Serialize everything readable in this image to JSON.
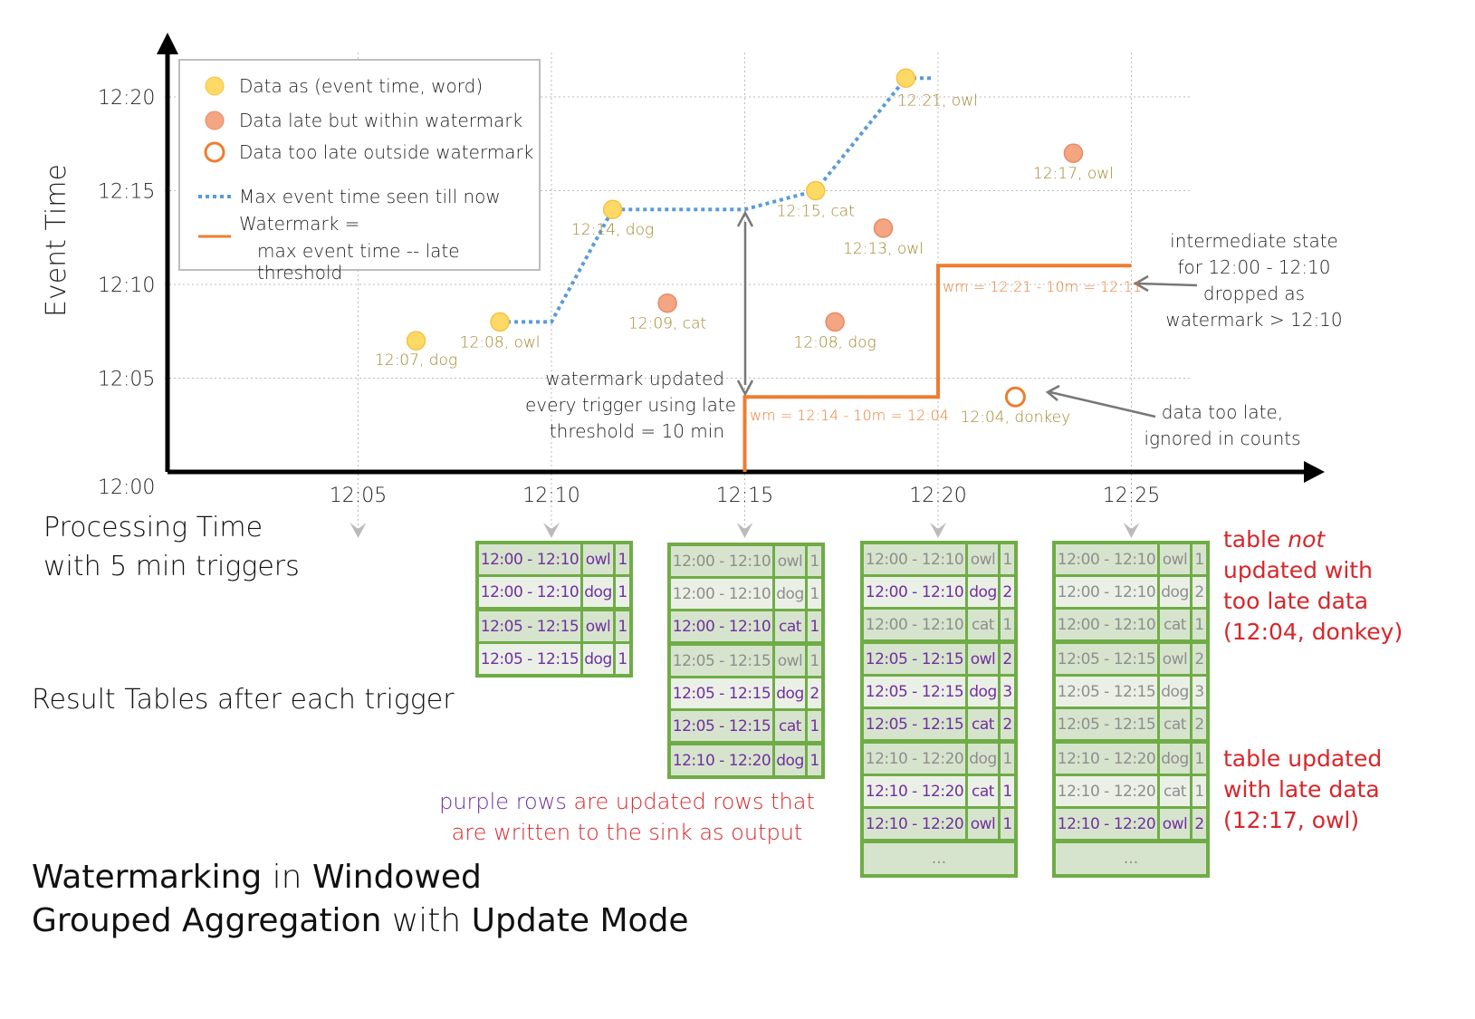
{
  "colors": {
    "table_border": "#6fac46",
    "updated_row_text": "#7030a0",
    "stale_row_text": "#8e8e8e",
    "on_time": "#ffd966",
    "late": "#f4a582",
    "too_late": "#ed7d31",
    "max_event_line": "#5b9bd5",
    "watermark_line": "#ed7d31",
    "annotation_red": "#d7262b",
    "point_label": "#a0862a"
  },
  "chart_data": {
    "type": "scatter",
    "ylabel": "Event Time",
    "xlabel_line1": "Processing Time",
    "xlabel_line2": "with 5 min triggers",
    "x_ticks": [
      "12:05",
      "12:10",
      "12:15",
      "12:20",
      "12:25"
    ],
    "y_ticks": [
      "12:00",
      "12:05",
      "12:10",
      "12:15",
      "12:20"
    ],
    "points": [
      {
        "proc": "12:06:30",
        "event": "12:07",
        "label": "12:07, dog",
        "kind": "on_time"
      },
      {
        "proc": "12:08:40",
        "event": "12:08",
        "label": "12:08, owl",
        "kind": "on_time"
      },
      {
        "proc": "12:11:35",
        "event": "12:14",
        "label": "12:14, dog",
        "kind": "on_time"
      },
      {
        "proc": "12:13:00",
        "event": "12:09",
        "label": "12:09, cat",
        "kind": "late"
      },
      {
        "proc": "12:16:50",
        "event": "12:15",
        "label": "12:15, cat",
        "kind": "on_time"
      },
      {
        "proc": "12:17:20",
        "event": "12:08",
        "label": "12:08, dog",
        "kind": "late"
      },
      {
        "proc": "12:18:35",
        "event": "12:13",
        "label": "12:13, owl",
        "kind": "late"
      },
      {
        "proc": "12:19:10",
        "event": "12:21",
        "label": "12:21, owl",
        "kind": "on_time"
      },
      {
        "proc": "12:22:00",
        "event": "12:04",
        "label": "12:04, donkey",
        "kind": "too_late"
      },
      {
        "proc": "12:23:30",
        "event": "12:17",
        "label": "12:17, owl",
        "kind": "late"
      }
    ],
    "max_event_line": [
      [
        "12:08:40",
        "12:08"
      ],
      [
        "12:10:00",
        "12:08"
      ],
      [
        "12:11:35",
        "12:14"
      ],
      [
        "12:15:00",
        "12:14"
      ],
      [
        "12:16:50",
        "12:15"
      ],
      [
        "12:19:10",
        "12:21"
      ],
      [
        "12:19:50",
        "12:21"
      ]
    ],
    "watermark_line": [
      [
        "12:15:00",
        "12:00"
      ],
      [
        "12:15:00",
        "12:04"
      ],
      [
        "12:20:00",
        "12:04"
      ],
      [
        "12:20:00",
        "12:11"
      ],
      [
        "12:25:00",
        "12:11"
      ]
    ],
    "watermark_labels": [
      "wm = 12:14 - 10m = 12:04",
      "wm = 12:21 - 10m = 12:11"
    ],
    "legend": [
      "Data as (event time, word)",
      "Data late but within watermark",
      "Data too late outside watermark",
      "Max event time seen till now",
      "Watermark =",
      "max event time -- late threshold"
    ],
    "legend_placement": "top-left",
    "grid": true
  },
  "annotations": {
    "wm_updated": [
      "watermark updated",
      "every trigger using late",
      "threshold = 10 min"
    ],
    "intermediate": [
      "intermediate state",
      "for 12:00 - 12:10",
      "dropped as",
      "watermark > 12:10"
    ],
    "too_late": [
      "data too late,",
      "ignored in counts"
    ],
    "result_tables": "Result Tables after each trigger",
    "purple_rows_a": "purple rows",
    "purple_rows_b": " are updated rows that",
    "purple_rows_c": "are written to the sink as output",
    "not_updated": [
      "table ",
      "not",
      "updated with",
      "too late data",
      "(12:04, donkey)"
    ],
    "updated_late": [
      "table updated",
      "with late data",
      "(12:17, owl)"
    ],
    "title": [
      "Watermarking",
      " in ",
      "Windowed",
      "Grouped Aggregation",
      " with ",
      "Update Mode"
    ]
  },
  "tables": [
    {
      "rows": [
        [
          "12:00 - 12:10",
          "owl",
          "1",
          1,
          0
        ],
        [
          "12:00 - 12:10",
          "dog",
          "1",
          1,
          1
        ],
        [
          "12:05 - 12:15",
          "owl",
          "1",
          1,
          0
        ],
        [
          "12:05 - 12:15",
          "dog",
          "1",
          1,
          1
        ]
      ],
      "more": ""
    },
    {
      "rows": [
        [
          "12:00 - 12:10",
          "owl",
          "1",
          0,
          0
        ],
        [
          "12:00 - 12:10",
          "dog",
          "1",
          0,
          1
        ],
        [
          "12:00 - 12:10",
          "cat",
          "1",
          1,
          0
        ],
        [
          "12:05 - 12:15",
          "owl",
          "1",
          0,
          0
        ],
        [
          "12:05 - 12:15",
          "dog",
          "2",
          1,
          1
        ],
        [
          "12:05 - 12:15",
          "cat",
          "1",
          1,
          0
        ],
        [
          "12:10 - 12:20",
          "dog",
          "1",
          1,
          0
        ]
      ],
      "more": ""
    },
    {
      "rows": [
        [
          "12:00 - 12:10",
          "owl",
          "1",
          0,
          0
        ],
        [
          "12:00 - 12:10",
          "dog",
          "2",
          1,
          1
        ],
        [
          "12:00 - 12:10",
          "cat",
          "1",
          0,
          0
        ],
        [
          "12:05 - 12:15",
          "owl",
          "2",
          1,
          0
        ],
        [
          "12:05 - 12:15",
          "dog",
          "3",
          1,
          1
        ],
        [
          "12:05 - 12:15",
          "cat",
          "2",
          1,
          0
        ],
        [
          "12:10 - 12:20",
          "dog",
          "1",
          0,
          0
        ],
        [
          "12:10 - 12:20",
          "cat",
          "1",
          1,
          1
        ],
        [
          "12:10 - 12:20",
          "owl",
          "1",
          1,
          0
        ]
      ],
      "more": "..."
    },
    {
      "rows": [
        [
          "12:00 - 12:10",
          "owl",
          "1",
          0,
          0
        ],
        [
          "12:00 - 12:10",
          "dog",
          "2",
          0,
          1
        ],
        [
          "12:00 - 12:10",
          "cat",
          "1",
          0,
          0
        ],
        [
          "12:05 - 12:15",
          "owl",
          "2",
          0,
          0
        ],
        [
          "12:05 - 12:15",
          "dog",
          "3",
          0,
          1
        ],
        [
          "12:05 - 12:15",
          "cat",
          "2",
          0,
          0
        ],
        [
          "12:10 - 12:20",
          "dog",
          "1",
          0,
          0
        ],
        [
          "12:10 - 12:20",
          "cat",
          "1",
          0,
          1
        ],
        [
          "12:10 - 12:20",
          "owl",
          "2",
          1,
          0
        ]
      ],
      "more": "..."
    }
  ]
}
